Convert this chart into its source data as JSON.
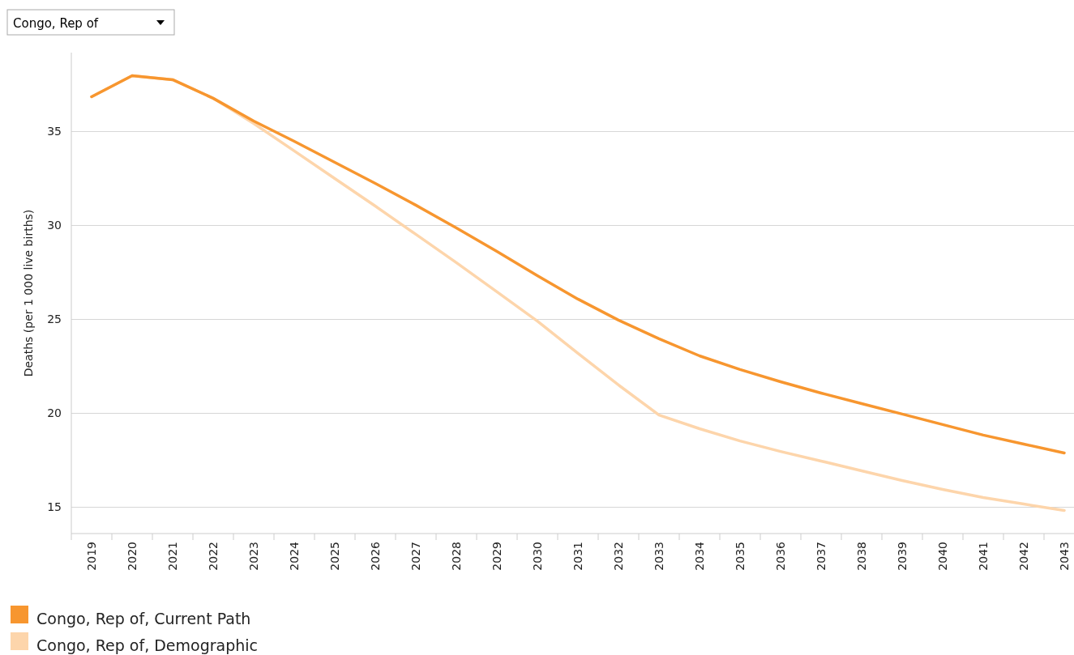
{
  "chart_data": {
    "type": "line",
    "ylabel": "Deaths (per 1 000 live births)",
    "annotations": [
      "Congo, Rep of"
    ],
    "categories": [
      "2019",
      "2020",
      "2021",
      "2022",
      "2023",
      "2024",
      "2025",
      "2026",
      "2027",
      "2028",
      "2029",
      "2030",
      "2031",
      "2032",
      "2033",
      "2034",
      "2035",
      "2036",
      "2037",
      "2038",
      "2039",
      "2040",
      "2041",
      "2042",
      "2043"
    ],
    "series": [
      {
        "name": "Congo, Rep of, Current Path",
        "color": "#f7962f",
        "values": [
          36.85,
          37.97,
          37.76,
          36.77,
          35.56,
          34.48,
          33.36,
          32.24,
          31.08,
          29.87,
          28.62,
          27.33,
          26.08,
          24.96,
          23.97,
          23.06,
          22.33,
          21.68,
          21.08,
          20.52,
          19.96,
          19.4,
          18.84,
          18.36,
          17.89
        ]
      },
      {
        "name": "Congo, Rep of, Demographic",
        "color": "#fdd5ab",
        "values": [
          36.85,
          37.97,
          37.76,
          36.77,
          35.43,
          33.97,
          32.5,
          31.03,
          29.53,
          28.02,
          26.47,
          24.91,
          23.19,
          21.51,
          19.91,
          19.18,
          18.53,
          17.97,
          17.46,
          16.94,
          16.42,
          15.95,
          15.52,
          15.17,
          14.83
        ]
      }
    ],
    "ylim": [
      13.6,
      39.2
    ],
    "yticks": [
      15,
      20,
      25,
      30,
      35
    ],
    "grid": "y",
    "legend": "bottom left",
    "marker": "none",
    "line_style": "solid"
  }
}
